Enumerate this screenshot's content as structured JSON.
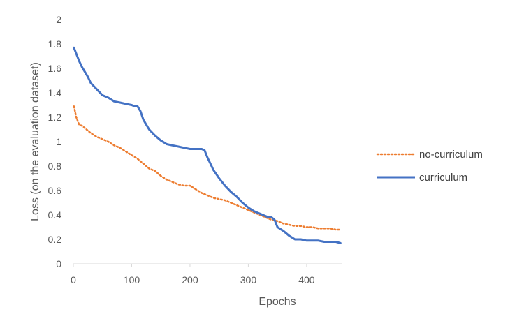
{
  "chart_data": {
    "type": "line",
    "title": "",
    "xlabel": "Epochs",
    "ylabel": "Loss (on the evaluation dataset)",
    "xlim": [
      0,
      460
    ],
    "ylim": [
      0,
      2
    ],
    "xticks": [
      0,
      100,
      200,
      300,
      400
    ],
    "yticks": [
      0,
      0.2,
      0.4,
      0.6,
      0.8,
      1,
      1.2,
      1.4,
      1.6,
      1.8,
      2
    ],
    "grid": false,
    "legend_position": "right",
    "series": [
      {
        "name": "no-curriculum",
        "color": "#ED7D31",
        "style": "dotted",
        "x": [
          1,
          5,
          10,
          15,
          20,
          30,
          40,
          50,
          60,
          70,
          80,
          90,
          100,
          110,
          120,
          130,
          140,
          150,
          160,
          170,
          180,
          190,
          200,
          210,
          220,
          230,
          240,
          250,
          260,
          270,
          280,
          290,
          300,
          310,
          320,
          330,
          340,
          350,
          360,
          370,
          380,
          390,
          400,
          410,
          420,
          430,
          440,
          450,
          458
        ],
        "y": [
          1.29,
          1.2,
          1.14,
          1.13,
          1.11,
          1.07,
          1.04,
          1.02,
          1.0,
          0.97,
          0.95,
          0.92,
          0.89,
          0.86,
          0.82,
          0.78,
          0.76,
          0.72,
          0.69,
          0.67,
          0.65,
          0.64,
          0.64,
          0.61,
          0.58,
          0.56,
          0.54,
          0.53,
          0.52,
          0.5,
          0.48,
          0.46,
          0.44,
          0.42,
          0.4,
          0.38,
          0.36,
          0.35,
          0.33,
          0.32,
          0.31,
          0.31,
          0.3,
          0.3,
          0.29,
          0.29,
          0.29,
          0.28,
          0.28
        ]
      },
      {
        "name": "curriculum",
        "color": "#4472C4",
        "style": "solid",
        "x": [
          1,
          5,
          10,
          15,
          20,
          25,
          30,
          40,
          50,
          60,
          70,
          80,
          90,
          100,
          105,
          110,
          115,
          120,
          125,
          130,
          140,
          150,
          160,
          170,
          180,
          190,
          200,
          210,
          220,
          225,
          230,
          235,
          240,
          250,
          260,
          270,
          280,
          290,
          300,
          310,
          320,
          330,
          335,
          340,
          345,
          350,
          360,
          370,
          380,
          390,
          400,
          410,
          420,
          430,
          440,
          450,
          458
        ],
        "y": [
          1.77,
          1.72,
          1.66,
          1.61,
          1.57,
          1.53,
          1.48,
          1.43,
          1.38,
          1.36,
          1.33,
          1.32,
          1.31,
          1.3,
          1.29,
          1.29,
          1.25,
          1.18,
          1.14,
          1.1,
          1.05,
          1.01,
          0.98,
          0.97,
          0.96,
          0.95,
          0.94,
          0.94,
          0.94,
          0.93,
          0.87,
          0.82,
          0.77,
          0.7,
          0.64,
          0.59,
          0.55,
          0.5,
          0.46,
          0.43,
          0.41,
          0.39,
          0.38,
          0.38,
          0.36,
          0.3,
          0.27,
          0.23,
          0.2,
          0.2,
          0.19,
          0.19,
          0.19,
          0.18,
          0.18,
          0.18,
          0.17
        ]
      }
    ]
  }
}
